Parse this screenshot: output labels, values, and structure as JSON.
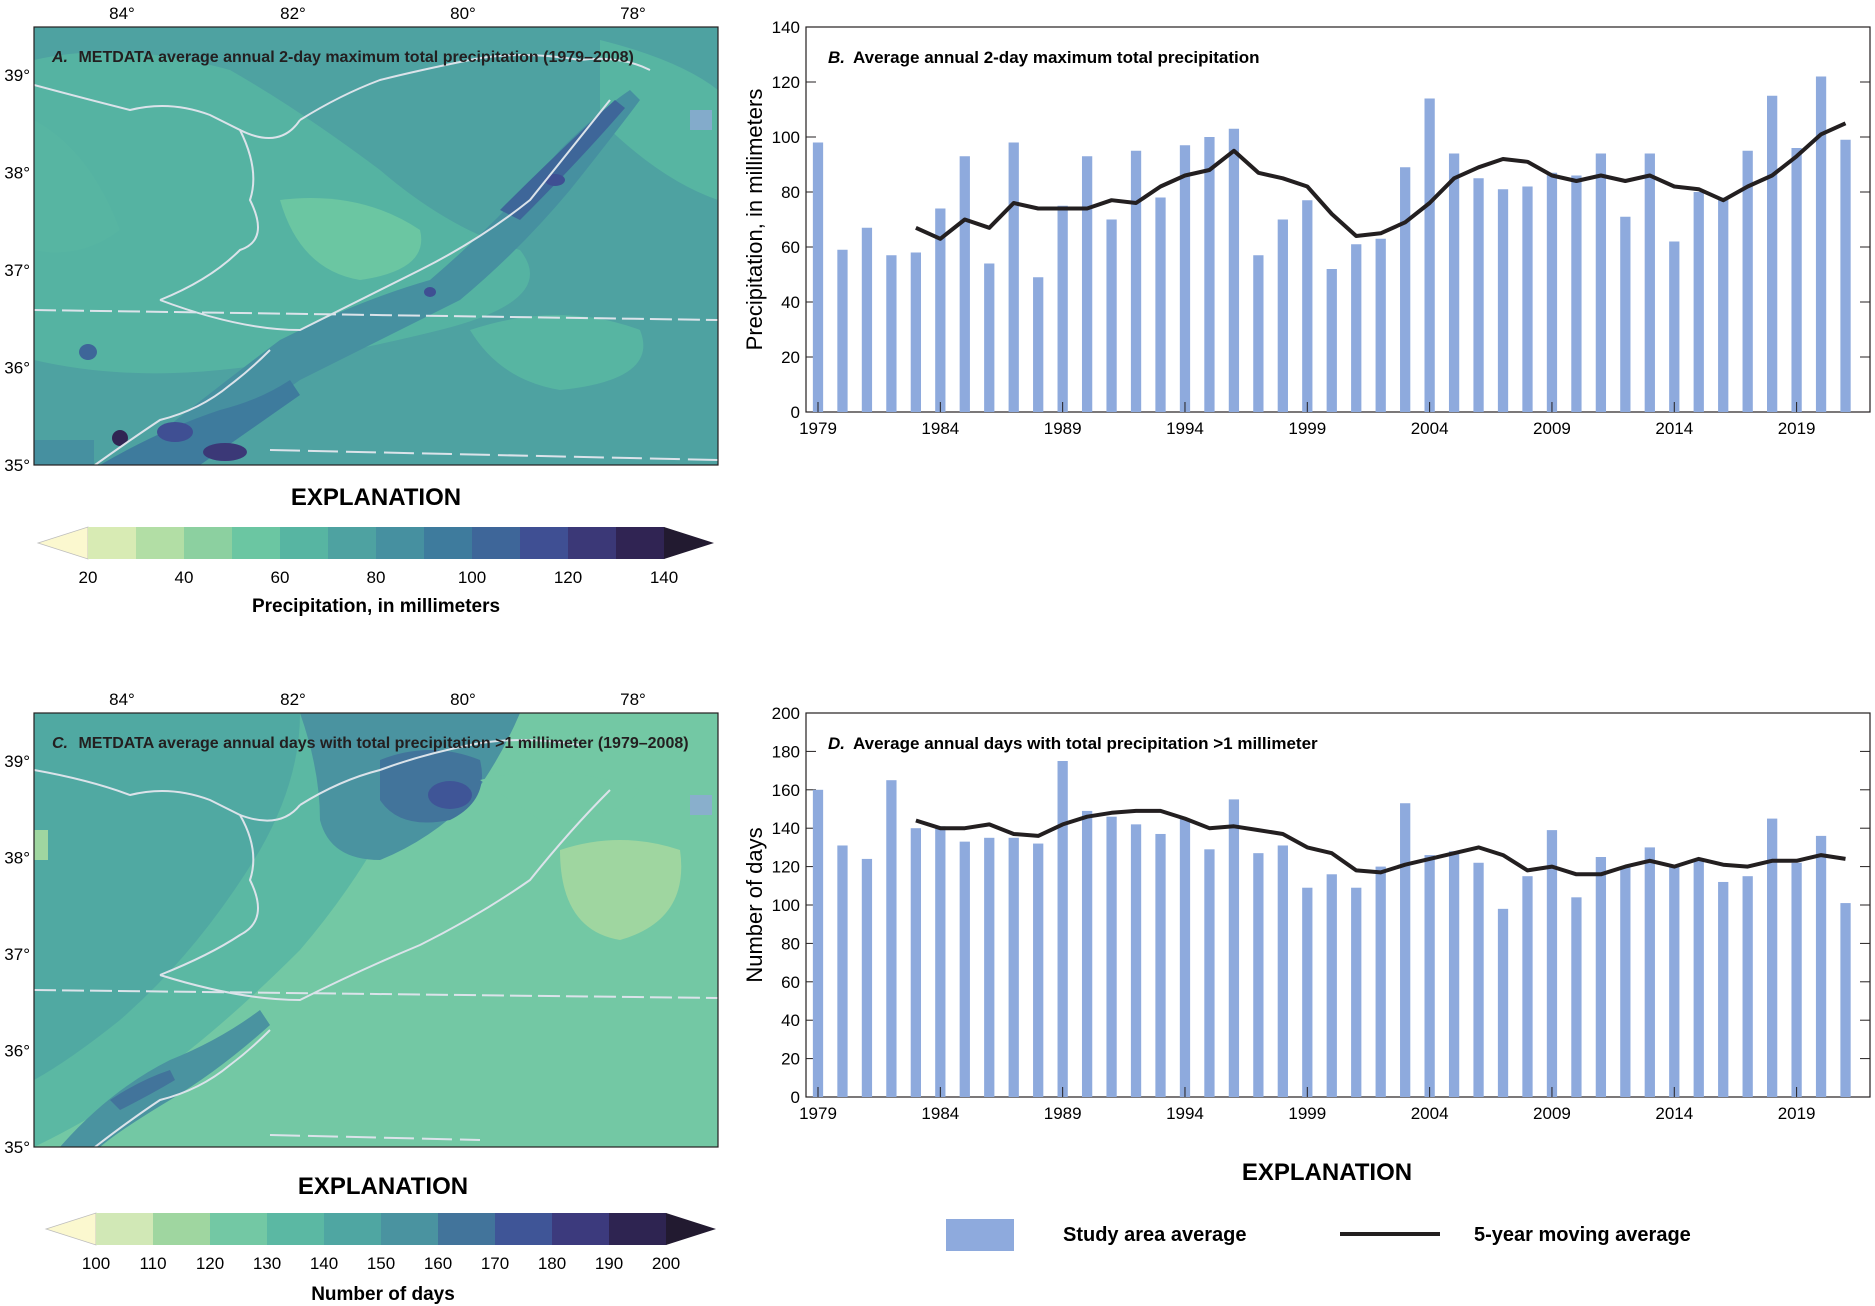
{
  "panels": {
    "a": {
      "letter": "A.",
      "title": "METDATA average annual 2-day maximum total precipitation (1979–2008)",
      "lon_labels": [
        "84°",
        "82°",
        "80°",
        "78°"
      ],
      "lat_labels": [
        "39°",
        "38°",
        "37°",
        "36°",
        "35°"
      ],
      "explanation": "EXPLANATION",
      "colorbar_ticks": [
        "20",
        "40",
        "60",
        "80",
        "100",
        "120",
        "140"
      ],
      "colorbar_label": "Precipitation, in millimeters",
      "colors": [
        "#fbf8cf",
        "#d8ebb4",
        "#b2dea5",
        "#8cd0a0",
        "#6bc6a2",
        "#57b5a2",
        "#4ea2a1",
        "#4690a0",
        "#3e7b9d",
        "#3e6699",
        "#3f4f93",
        "#3b3877",
        "#302453",
        "#221a30"
      ]
    },
    "c": {
      "letter": "C.",
      "title": "METDATA average annual days with total precipitation >1 millimeter (1979–2008)",
      "lon_labels": [
        "84°",
        "82°",
        "80°",
        "78°"
      ],
      "lat_labels": [
        "39°",
        "38°",
        "37°",
        "36°",
        "35°"
      ],
      "explanation": "EXPLANATION",
      "colorbar_ticks": [
        "100",
        "110",
        "120",
        "130",
        "140",
        "150",
        "160",
        "170",
        "180",
        "190",
        "200"
      ],
      "colorbar_label": "Number of days",
      "colors": [
        "#fbf8cf",
        "#d1e8b6",
        "#9fd6a0",
        "#73c8a4",
        "#5bb8a3",
        "#4fa6a2",
        "#4a93a0",
        "#42749b",
        "#3f5597",
        "#3c3a7d",
        "#2e2451",
        "#221a30"
      ]
    }
  },
  "legend": {
    "explanation": "EXPLANATION",
    "bar_label": "Study area average",
    "line_label": "5-year moving average",
    "bar_color": "#8eaadd",
    "line_color": "#231f20"
  },
  "chart_data": [
    {
      "id": "B",
      "type": "bar",
      "letter": "B.",
      "title": "Average annual 2-day maximum total precipitation",
      "xlabel": "",
      "ylabel": "Precipitation, in millimeters",
      "ylim": [
        0,
        140
      ],
      "yticks": [
        0,
        20,
        40,
        60,
        80,
        100,
        120,
        140
      ],
      "xtick_labels": [
        "1979",
        "1984",
        "1989",
        "1994",
        "1999",
        "2004",
        "2009",
        "2014",
        "2019"
      ],
      "categories": [
        1979,
        1980,
        1981,
        1982,
        1983,
        1984,
        1985,
        1986,
        1987,
        1988,
        1989,
        1990,
        1991,
        1992,
        1993,
        1994,
        1995,
        1996,
        1997,
        1998,
        1999,
        2000,
        2001,
        2002,
        2003,
        2004,
        2005,
        2006,
        2007,
        2008,
        2009,
        2010,
        2011,
        2012,
        2013,
        2014,
        2015,
        2016,
        2017,
        2018,
        2019,
        2020,
        2021
      ],
      "series": [
        {
          "name": "Study area average",
          "type": "bar",
          "values": [
            98,
            59,
            67,
            57,
            58,
            74,
            93,
            54,
            98,
            49,
            75,
            93,
            70,
            95,
            78,
            97,
            100,
            103,
            57,
            70,
            77,
            52,
            61,
            63,
            89,
            114,
            94,
            85,
            81,
            82,
            87,
            86,
            94,
            71,
            94,
            62,
            80,
            78,
            95,
            115,
            96,
            122,
            99
          ]
        },
        {
          "name": "5-year moving average",
          "type": "line",
          "values": [
            null,
            null,
            null,
            null,
            67,
            63,
            70,
            67,
            76,
            74,
            74,
            74,
            77,
            76,
            82,
            86,
            88,
            95,
            87,
            85,
            82,
            72,
            64,
            65,
            69,
            76,
            85,
            89,
            92,
            91,
            86,
            84,
            86,
            84,
            86,
            82,
            81,
            77,
            82,
            86,
            93,
            101,
            105
          ]
        }
      ]
    },
    {
      "id": "D",
      "type": "bar",
      "letter": "D.",
      "title": "Average annual days with total precipitation >1 millimeter",
      "xlabel": "",
      "ylabel": "Number of days",
      "ylim": [
        0,
        200
      ],
      "yticks": [
        0,
        20,
        40,
        60,
        80,
        100,
        120,
        140,
        160,
        180,
        200
      ],
      "xtick_labels": [
        "1979",
        "1984",
        "1989",
        "1994",
        "1999",
        "2004",
        "2009",
        "2014",
        "2019"
      ],
      "categories": [
        1979,
        1980,
        1981,
        1982,
        1983,
        1984,
        1985,
        1986,
        1987,
        1988,
        1989,
        1990,
        1991,
        1992,
        1993,
        1994,
        1995,
        1996,
        1997,
        1998,
        1999,
        2000,
        2001,
        2002,
        2003,
        2004,
        2005,
        2006,
        2007,
        2008,
        2009,
        2010,
        2011,
        2012,
        2013,
        2014,
        2015,
        2016,
        2017,
        2018,
        2019,
        2020,
        2021
      ],
      "series": [
        {
          "name": "Study area average",
          "type": "bar",
          "values": [
            160,
            131,
            124,
            165,
            140,
            141,
            133,
            135,
            135,
            132,
            175,
            149,
            146,
            142,
            137,
            145,
            129,
            155,
            127,
            131,
            109,
            116,
            109,
            120,
            153,
            126,
            128,
            122,
            98,
            115,
            139,
            104,
            125,
            120,
            130,
            121,
            123,
            112,
            115,
            145,
            122,
            136,
            101
          ]
        },
        {
          "name": "5-year moving average",
          "type": "line",
          "values": [
            null,
            null,
            null,
            null,
            144,
            140,
            140,
            142,
            137,
            136,
            142,
            146,
            148,
            149,
            149,
            145,
            140,
            141,
            139,
            137,
            130,
            127,
            118,
            117,
            121,
            124,
            127,
            130,
            126,
            118,
            120,
            116,
            116,
            120,
            123,
            120,
            124,
            121,
            120,
            123,
            123,
            126,
            124
          ]
        }
      ]
    }
  ]
}
